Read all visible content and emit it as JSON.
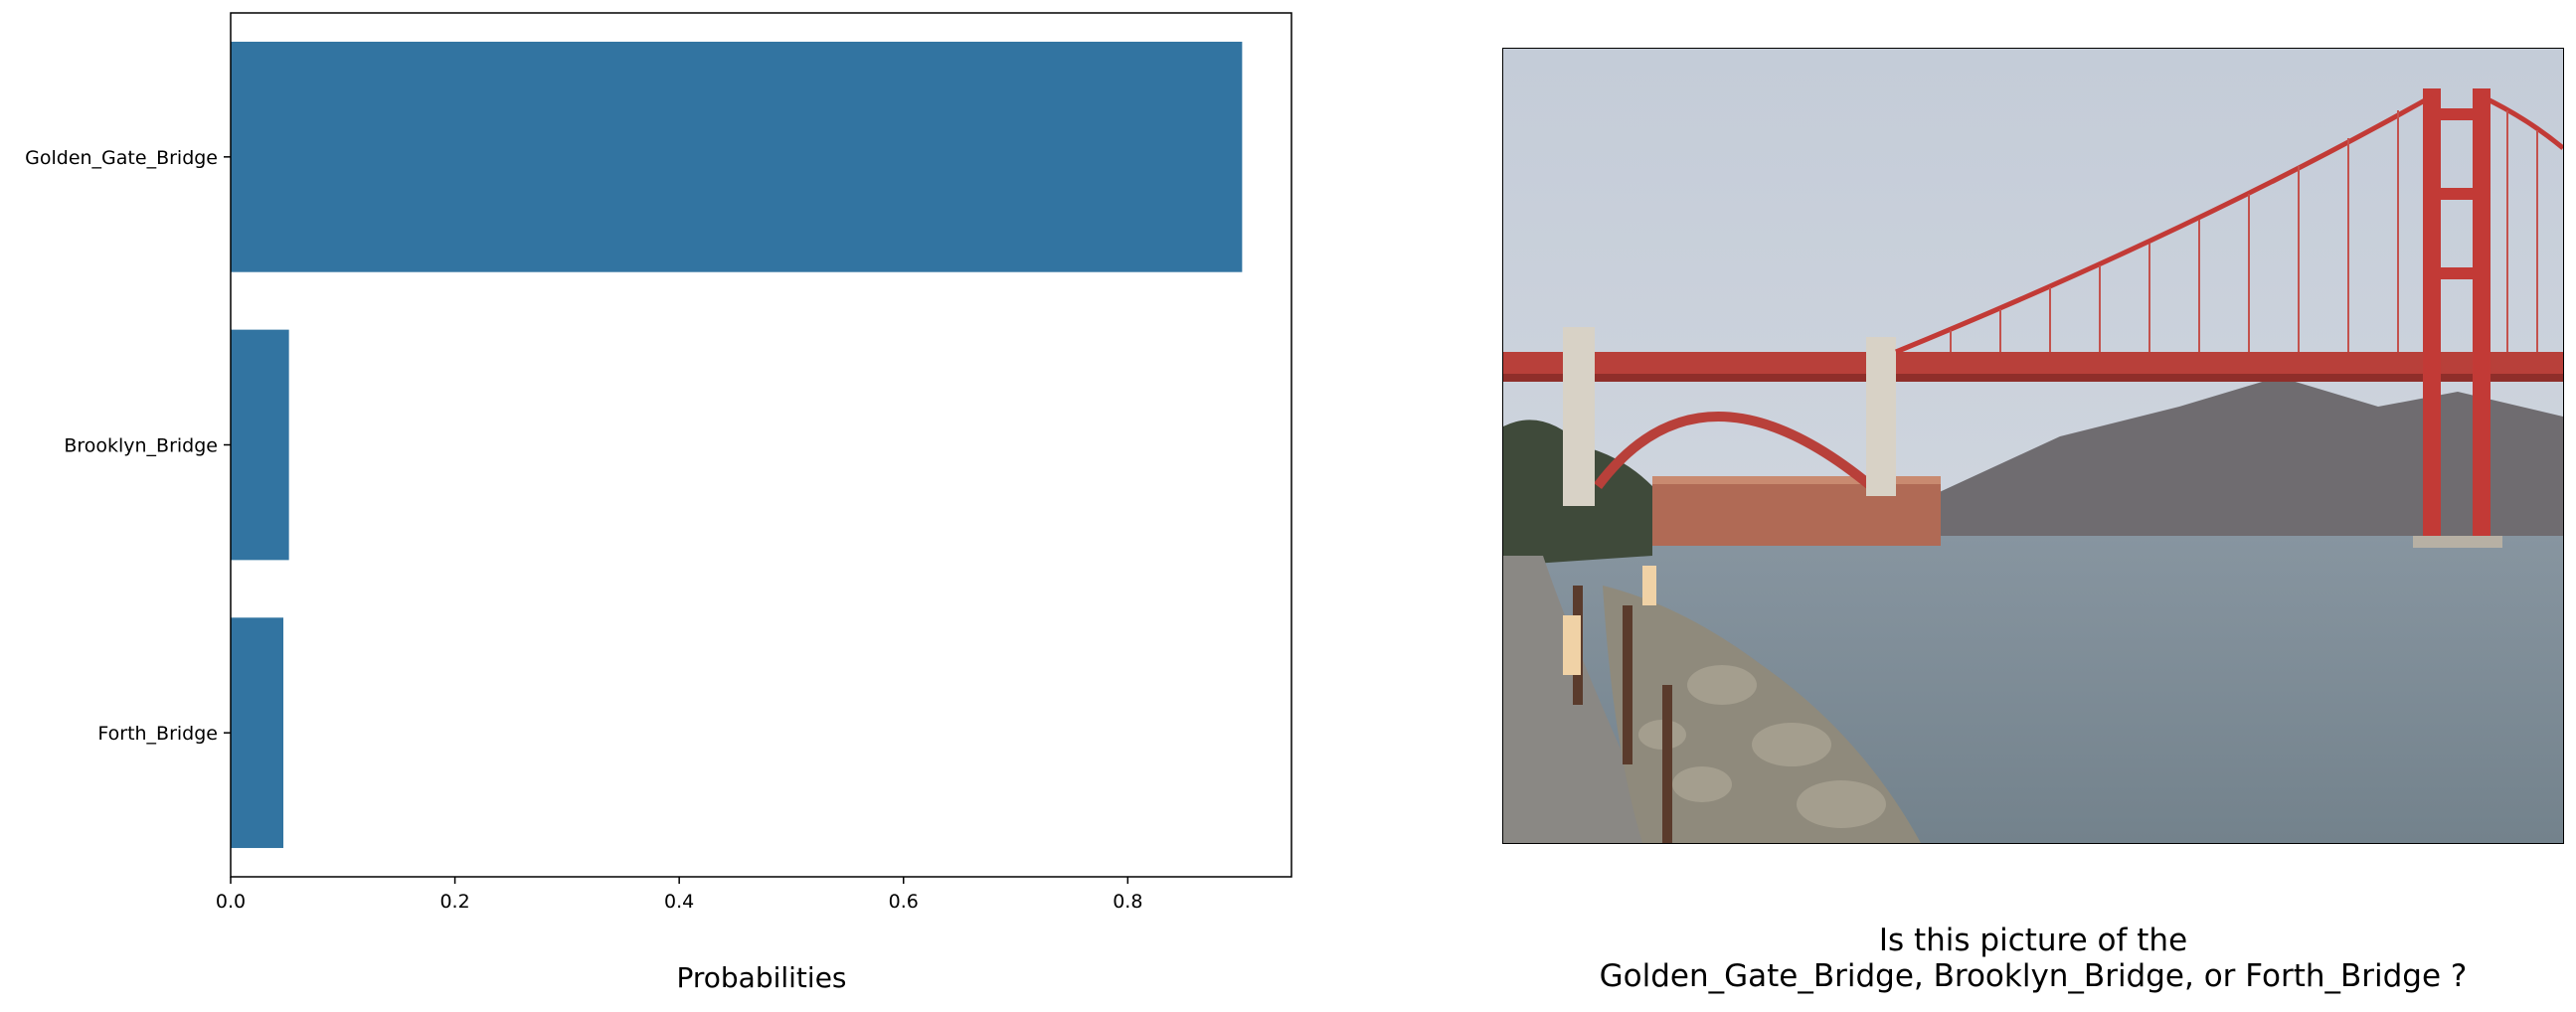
{
  "chart_data": {
    "type": "bar",
    "orientation": "horizontal",
    "categories": [
      "Golden_Gate_Bridge",
      "Brooklyn_Bridge",
      "Forth_Bridge"
    ],
    "values": [
      0.902,
      0.052,
      0.047
    ],
    "xlabel": "Probabilities",
    "ylabel": "",
    "title": "",
    "xlim": [
      0,
      0.946
    ],
    "xticks": [
      "0.0",
      "0.2",
      "0.4",
      "0.6",
      "0.8"
    ],
    "bar_color": "#3274a1",
    "grid": false,
    "legend": "none"
  },
  "caption": {
    "line1": "Is this picture of the",
    "line2": "Golden_Gate_Bridge, Brooklyn_Bridge, or Forth_Bridge ?"
  },
  "photo": {
    "subject": "golden-gate-bridge-photo",
    "colors": {
      "sky": "#c9d1dc",
      "bridge": "#c23a36",
      "water": "#7f8f98",
      "hills": "#6f6c70",
      "rocks": "#8f8a7c"
    }
  }
}
